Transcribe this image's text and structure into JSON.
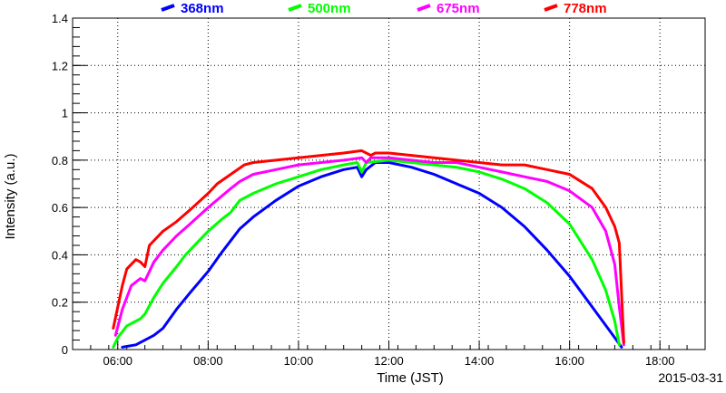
{
  "chart_data": {
    "type": "line",
    "title": "",
    "xlabel": "Time (JST)",
    "ylabel": "Intensity (a.u.)",
    "date_label": "2015-03-31",
    "x_unit": "hours (JST)",
    "xlim": [
      5.0,
      19.0
    ],
    "ylim": [
      0,
      1.4
    ],
    "x_ticks": [
      {
        "value": 6,
        "label": "06:00"
      },
      {
        "value": 8,
        "label": "08:00"
      },
      {
        "value": 10,
        "label": "10:00"
      },
      {
        "value": 12,
        "label": "12:00"
      },
      {
        "value": 14,
        "label": "14:00"
      },
      {
        "value": 16,
        "label": "16:00"
      },
      {
        "value": 18,
        "label": "18:00"
      }
    ],
    "y_ticks": [
      {
        "value": 0,
        "label": "0"
      },
      {
        "value": 0.2,
        "label": "0.2"
      },
      {
        "value": 0.4,
        "label": "0.4"
      },
      {
        "value": 0.6,
        "label": "0.6"
      },
      {
        "value": 0.8,
        "label": "0.8"
      },
      {
        "value": 1.0,
        "label": "1"
      },
      {
        "value": 1.2,
        "label": "1.2"
      },
      {
        "value": 1.4,
        "label": "1.4"
      }
    ],
    "grid": true,
    "legend_position": "top",
    "series": [
      {
        "name": "368nm",
        "color": "#0000ff",
        "points": [
          [
            6.1,
            0.01
          ],
          [
            6.4,
            0.02
          ],
          [
            6.8,
            0.06
          ],
          [
            7.0,
            0.09
          ],
          [
            7.3,
            0.17
          ],
          [
            7.6,
            0.24
          ],
          [
            8.0,
            0.33
          ],
          [
            8.3,
            0.41
          ],
          [
            8.5,
            0.46
          ],
          [
            8.7,
            0.51
          ],
          [
            9.0,
            0.56
          ],
          [
            9.5,
            0.63
          ],
          [
            10.0,
            0.69
          ],
          [
            10.5,
            0.73
          ],
          [
            11.0,
            0.76
          ],
          [
            11.3,
            0.77
          ],
          [
            11.4,
            0.73
          ],
          [
            11.5,
            0.76
          ],
          [
            11.7,
            0.79
          ],
          [
            12.0,
            0.79
          ],
          [
            12.5,
            0.77
          ],
          [
            13.0,
            0.74
          ],
          [
            13.5,
            0.7
          ],
          [
            14.0,
            0.66
          ],
          [
            14.5,
            0.6
          ],
          [
            15.0,
            0.52
          ],
          [
            15.5,
            0.42
          ],
          [
            16.0,
            0.31
          ],
          [
            16.5,
            0.18
          ],
          [
            17.0,
            0.05
          ],
          [
            17.15,
            0.01
          ]
        ]
      },
      {
        "name": "500nm",
        "color": "#00ff00",
        "points": [
          [
            5.9,
            0.01
          ],
          [
            6.0,
            0.05
          ],
          [
            6.2,
            0.1
          ],
          [
            6.5,
            0.13
          ],
          [
            6.6,
            0.15
          ],
          [
            6.8,
            0.22
          ],
          [
            7.0,
            0.28
          ],
          [
            7.3,
            0.35
          ],
          [
            7.5,
            0.4
          ],
          [
            7.8,
            0.46
          ],
          [
            8.0,
            0.5
          ],
          [
            8.3,
            0.55
          ],
          [
            8.5,
            0.58
          ],
          [
            8.7,
            0.63
          ],
          [
            9.0,
            0.66
          ],
          [
            9.5,
            0.7
          ],
          [
            10.0,
            0.73
          ],
          [
            10.5,
            0.76
          ],
          [
            11.0,
            0.78
          ],
          [
            11.3,
            0.79
          ],
          [
            11.4,
            0.75
          ],
          [
            11.5,
            0.79
          ],
          [
            12.0,
            0.8
          ],
          [
            12.5,
            0.79
          ],
          [
            13.0,
            0.78
          ],
          [
            13.5,
            0.77
          ],
          [
            14.0,
            0.75
          ],
          [
            14.5,
            0.72
          ],
          [
            15.0,
            0.68
          ],
          [
            15.5,
            0.62
          ],
          [
            16.0,
            0.53
          ],
          [
            16.5,
            0.38
          ],
          [
            16.8,
            0.25
          ],
          [
            17.0,
            0.12
          ],
          [
            17.1,
            0.02
          ]
        ]
      },
      {
        "name": "675nm",
        "color": "#ff00ff",
        "points": [
          [
            5.95,
            0.06
          ],
          [
            6.1,
            0.17
          ],
          [
            6.3,
            0.27
          ],
          [
            6.5,
            0.3
          ],
          [
            6.6,
            0.29
          ],
          [
            6.8,
            0.37
          ],
          [
            7.0,
            0.42
          ],
          [
            7.3,
            0.48
          ],
          [
            7.6,
            0.53
          ],
          [
            8.0,
            0.6
          ],
          [
            8.5,
            0.68
          ],
          [
            8.7,
            0.71
          ],
          [
            9.0,
            0.74
          ],
          [
            9.5,
            0.76
          ],
          [
            10.0,
            0.78
          ],
          [
            10.5,
            0.79
          ],
          [
            11.0,
            0.8
          ],
          [
            11.4,
            0.81
          ],
          [
            11.5,
            0.79
          ],
          [
            11.6,
            0.81
          ],
          [
            12.0,
            0.81
          ],
          [
            12.5,
            0.8
          ],
          [
            13.0,
            0.79
          ],
          [
            13.5,
            0.79
          ],
          [
            14.0,
            0.77
          ],
          [
            14.5,
            0.75
          ],
          [
            15.0,
            0.73
          ],
          [
            15.5,
            0.71
          ],
          [
            16.0,
            0.67
          ],
          [
            16.5,
            0.6
          ],
          [
            16.8,
            0.5
          ],
          [
            17.0,
            0.36
          ],
          [
            17.1,
            0.18
          ],
          [
            17.2,
            0.02
          ]
        ]
      },
      {
        "name": "778nm",
        "color": "#ff0000",
        "points": [
          [
            5.9,
            0.09
          ],
          [
            6.0,
            0.18
          ],
          [
            6.1,
            0.27
          ],
          [
            6.2,
            0.34
          ],
          [
            6.4,
            0.38
          ],
          [
            6.5,
            0.37
          ],
          [
            6.6,
            0.35
          ],
          [
            6.7,
            0.44
          ],
          [
            7.0,
            0.5
          ],
          [
            7.3,
            0.54
          ],
          [
            7.6,
            0.59
          ],
          [
            8.0,
            0.66
          ],
          [
            8.2,
            0.7
          ],
          [
            8.5,
            0.74
          ],
          [
            8.8,
            0.78
          ],
          [
            9.0,
            0.79
          ],
          [
            9.5,
            0.8
          ],
          [
            10.0,
            0.81
          ],
          [
            10.5,
            0.82
          ],
          [
            11.0,
            0.83
          ],
          [
            11.4,
            0.84
          ],
          [
            11.6,
            0.82
          ],
          [
            11.7,
            0.83
          ],
          [
            12.0,
            0.83
          ],
          [
            12.5,
            0.82
          ],
          [
            13.0,
            0.81
          ],
          [
            13.5,
            0.8
          ],
          [
            14.0,
            0.79
          ],
          [
            14.5,
            0.78
          ],
          [
            15.0,
            0.78
          ],
          [
            15.5,
            0.76
          ],
          [
            16.0,
            0.74
          ],
          [
            16.5,
            0.68
          ],
          [
            16.8,
            0.6
          ],
          [
            17.0,
            0.52
          ],
          [
            17.1,
            0.45
          ],
          [
            17.2,
            0.03
          ]
        ]
      }
    ]
  }
}
